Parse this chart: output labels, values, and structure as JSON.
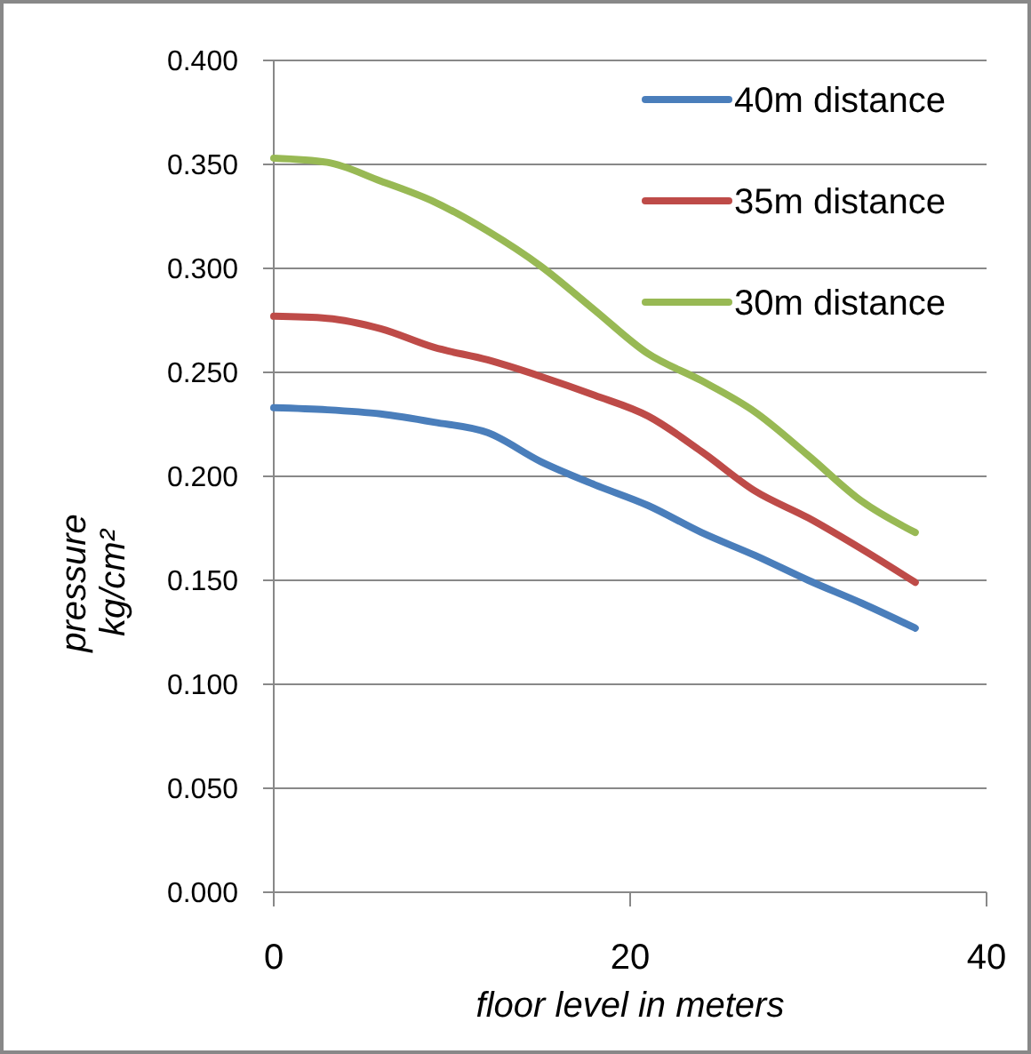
{
  "chart_data": {
    "type": "line",
    "xlabel": "floor level in meters",
    "ylabel": "pressure kg/cm²",
    "x": [
      0,
      3,
      6,
      9,
      12,
      15,
      18,
      21,
      24,
      27,
      30,
      33,
      36
    ],
    "series": [
      {
        "name": "40m distance",
        "color": "#4a7ebb",
        "values": [
          0.233,
          0.232,
          0.23,
          0.226,
          0.221,
          0.207,
          0.196,
          0.186,
          0.173,
          0.162,
          0.15,
          0.139,
          0.127
        ]
      },
      {
        "name": "35m distance",
        "color": "#be4b48",
        "values": [
          0.277,
          0.276,
          0.271,
          0.262,
          0.256,
          0.248,
          0.239,
          0.229,
          0.212,
          0.193,
          0.18,
          0.165,
          0.149
        ]
      },
      {
        "name": "30m distance",
        "color": "#98b954",
        "values": [
          0.353,
          0.351,
          0.342,
          0.332,
          0.318,
          0.301,
          0.28,
          0.259,
          0.246,
          0.231,
          0.21,
          0.188,
          0.173
        ]
      }
    ],
    "xlim": [
      0,
      40
    ],
    "xticks": [
      0,
      20,
      40
    ],
    "ylim": [
      0,
      0.4
    ],
    "yticks": [
      {
        "value": 0,
        "label": "0.000"
      },
      {
        "value": 0.05,
        "label": "0.050"
      },
      {
        "value": 0.1,
        "label": "0.100"
      },
      {
        "value": 0.15,
        "label": "0.150"
      },
      {
        "value": 0.2,
        "label": "0.200"
      },
      {
        "value": 0.25,
        "label": "0.250"
      },
      {
        "value": 0.3,
        "label": "0.300"
      },
      {
        "value": 0.35,
        "label": "0.350"
      },
      {
        "value": 0.4,
        "label": "0.400"
      }
    ],
    "grid": "y",
    "legend": "top right",
    "marker": "none",
    "line_style": "solid"
  }
}
